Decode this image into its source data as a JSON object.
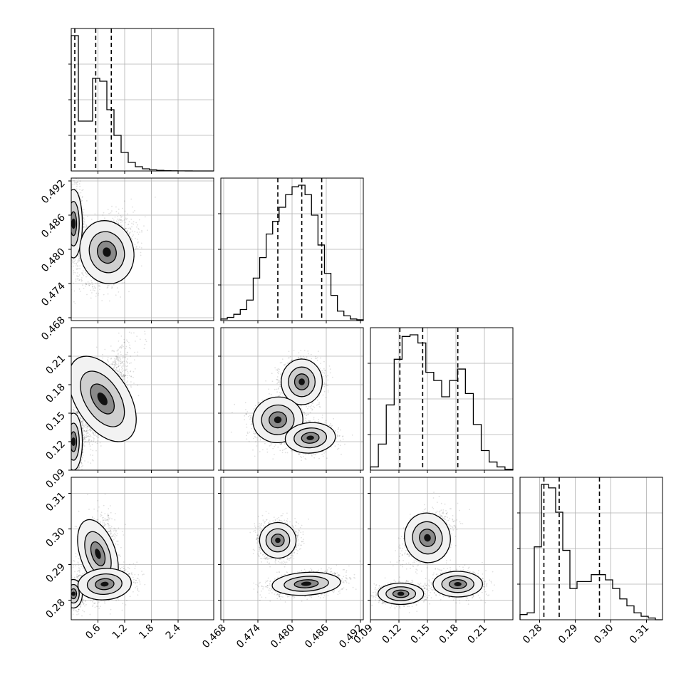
{
  "chart_data": {
    "type": "corner",
    "grid": true,
    "params": [
      {
        "name": "",
        "range": [
          0.0,
          3.2
        ],
        "ticks": [
          0.6,
          1.2,
          1.8,
          2.4
        ],
        "tick_labels": [
          "0.6",
          "1.2",
          "1.8",
          "2.4"
        ],
        "quantiles": [
          0.08,
          0.55,
          0.9
        ],
        "hist": [
          0.95,
          0.35,
          0.35,
          0.65,
          0.63,
          0.43,
          0.25,
          0.13,
          0.06,
          0.03,
          0.015,
          0.008,
          0.004,
          0.002,
          0.001,
          0.0005,
          0.0002,
          0,
          0,
          0
        ]
      },
      {
        "name": "",
        "range": [
          0.4675,
          0.4925
        ],
        "ticks": [
          0.468,
          0.474,
          0.48,
          0.486,
          0.492
        ],
        "tick_labels": [
          "0.468",
          "0.474",
          "0.480",
          "0.486",
          "0.492"
        ],
        "quantiles": [
          0.4775,
          0.4817,
          0.4852
        ],
        "hist": [
          0.01,
          0.02,
          0.04,
          0.07,
          0.13,
          0.27,
          0.4,
          0.55,
          0.63,
          0.72,
          0.8,
          0.85,
          0.86,
          0.8,
          0.67,
          0.48,
          0.3,
          0.16,
          0.06,
          0.03,
          0.01,
          0.005
        ]
      },
      {
        "name": "",
        "range": [
          0.09,
          0.24
        ],
        "ticks": [
          0.09,
          0.12,
          0.15,
          0.18,
          0.21
        ],
        "tick_labels": [
          "0.09",
          "0.12",
          "0.15",
          "0.18",
          "0.21"
        ],
        "quantiles": [
          0.121,
          0.145,
          0.182
        ],
        "hist": [
          0.02,
          0.16,
          0.4,
          0.68,
          0.82,
          0.83,
          0.78,
          0.6,
          0.55,
          0.45,
          0.55,
          0.62,
          0.47,
          0.28,
          0.12,
          0.05,
          0.02,
          0.005
        ]
      },
      {
        "name": "",
        "range": [
          0.2745,
          0.3145
        ],
        "ticks": [
          0.28,
          0.29,
          0.3,
          0.31
        ],
        "tick_labels": [
          "0.28",
          "0.29",
          "0.30",
          "0.31"
        ],
        "quantiles": [
          0.2812,
          0.2855,
          0.2968
        ],
        "hist": [
          0.03,
          0.04,
          0.42,
          0.78,
          0.76,
          0.62,
          0.4,
          0.18,
          0.22,
          0.22,
          0.26,
          0.26,
          0.23,
          0.18,
          0.12,
          0.08,
          0.04,
          0.02,
          0.01,
          0
        ]
      }
    ],
    "pairs": [
      {
        "x": 0,
        "y": 1,
        "centers": [
          [
            0.05,
            0.4845,
            0.1,
            0.003,
            0.0,
            0.55
          ],
          [
            0.8,
            0.4795,
            0.3,
            0.0028,
            0.4,
            0.8
          ]
        ]
      },
      {
        "x": 0,
        "y": 2,
        "centers": [
          [
            0.05,
            0.12,
            0.1,
            0.015,
            0.0,
            0.55
          ],
          [
            0.7,
            0.165,
            0.3,
            0.025,
            0.75,
            0.8
          ]
        ]
      },
      {
        "x": 0,
        "y": 3,
        "centers": [
          [
            0.05,
            0.2818,
            0.1,
            0.002,
            0.0,
            0.55
          ],
          [
            0.6,
            0.293,
            0.2,
            0.005,
            0.3,
            0.5
          ],
          [
            0.75,
            0.2845,
            0.3,
            0.0022,
            0.2,
            0.5
          ]
        ]
      },
      {
        "x": 1,
        "y": 2,
        "centers": [
          [
            0.4817,
            0.183,
            0.0018,
            0.012,
            0.0,
            0.6
          ],
          [
            0.4775,
            0.143,
            0.0022,
            0.012,
            0.2,
            0.55
          ],
          [
            0.4832,
            0.124,
            0.0022,
            0.008,
            0.2,
            0.5
          ]
        ]
      },
      {
        "x": 1,
        "y": 3,
        "centers": [
          [
            0.4775,
            0.2968,
            0.0016,
            0.0025,
            0.0,
            0.6
          ],
          [
            0.4825,
            0.2846,
            0.003,
            0.0016,
            0.3,
            0.75
          ]
        ]
      },
      {
        "x": 2,
        "y": 3,
        "centers": [
          [
            0.122,
            0.2818,
            0.012,
            0.0015,
            0.0,
            0.55
          ],
          [
            0.15,
            0.2975,
            0.012,
            0.0035,
            0.4,
            0.45
          ],
          [
            0.182,
            0.2845,
            0.013,
            0.0018,
            0.0,
            0.55
          ]
        ]
      }
    ]
  }
}
